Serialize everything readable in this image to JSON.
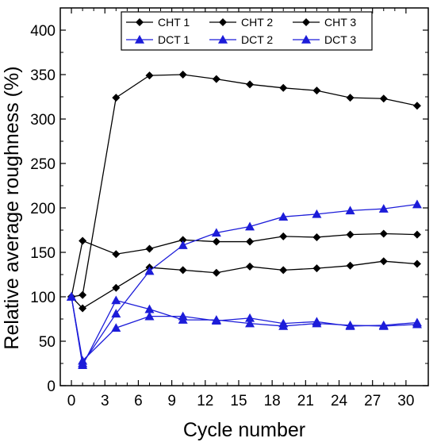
{
  "chart_data": {
    "type": "line",
    "xlabel": "Cycle number",
    "ylabel": "Relative average roughness (%)",
    "xlim": [
      -1,
      32
    ],
    "ylim": [
      0,
      425
    ],
    "x_ticks": [
      0,
      3,
      6,
      9,
      12,
      15,
      18,
      21,
      24,
      27,
      30
    ],
    "y_ticks": [
      0,
      50,
      100,
      150,
      200,
      250,
      300,
      350,
      400
    ],
    "grid": false,
    "legend_position": "top-center",
    "x": [
      0,
      1,
      4,
      7,
      10,
      13,
      16,
      19,
      22,
      25,
      28,
      31
    ],
    "series": [
      {
        "name": "CHT 1",
        "color": "#000000",
        "marker": "diamond",
        "values": [
          100,
          102,
          324,
          349,
          350,
          345,
          339,
          335,
          332,
          324,
          323,
          315
        ]
      },
      {
        "name": "CHT 2",
        "color": "#000000",
        "marker": "diamond",
        "values": [
          100,
          163,
          148,
          154,
          164,
          162,
          162,
          168,
          167,
          170,
          171,
          170
        ]
      },
      {
        "name": "CHT 3",
        "color": "#000000",
        "marker": "diamond",
        "values": [
          100,
          87,
          110,
          133,
          130,
          127,
          134,
          130,
          132,
          135,
          140,
          137
        ]
      },
      {
        "name": "DCT 1",
        "color": "#1c1cd9",
        "marker": "triangle",
        "values": [
          100,
          25,
          81,
          129,
          158,
          172,
          179,
          190,
          193,
          197,
          199,
          204
        ]
      },
      {
        "name": "DCT 2",
        "color": "#1c1cd9",
        "marker": "triangle",
        "values": [
          100,
          23,
          96,
          86,
          74,
          74,
          70,
          67,
          70,
          68,
          67,
          69
        ]
      },
      {
        "name": "DCT 3",
        "color": "#1c1cd9",
        "marker": "triangle",
        "values": [
          100,
          28,
          65,
          78,
          78,
          73,
          76,
          70,
          72,
          67,
          68,
          71
        ]
      }
    ]
  }
}
